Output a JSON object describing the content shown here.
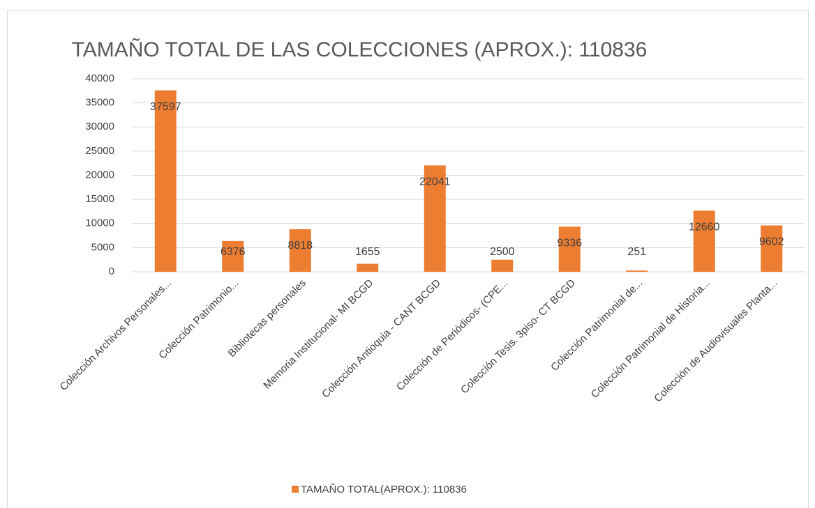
{
  "chart_data": {
    "type": "bar",
    "title": "TAMAÑO TOTAL DE LAS COLECCIONES (APROX.): 110836",
    "categories": [
      "Colección Archivos Personales...",
      "Colección Patrimonio...",
      "Bibliotecas personales",
      "Memoria Institucional- MI BCGD",
      "Colección Antioquia - CANT BCGD",
      "Colección de Periódicos- (CPE...",
      "Colección Tesis. 3piso- CT BCGD",
      "Colección Patrimonial de...",
      "Colección Patrimonial de Historia...",
      "Colección de Audiovisuales Planta..."
    ],
    "series": [
      {
        "name": "TAMAÑO TOTAL(APROX.): 110836",
        "color": "#ed7d31",
        "values": [
          37597,
          6376,
          8818,
          1655,
          22041,
          2500,
          9336,
          251,
          12660,
          9602
        ]
      }
    ],
    "ylim": [
      0,
      40000
    ],
    "yticks": [
      0,
      5000,
      10000,
      15000,
      20000,
      25000,
      30000,
      35000,
      40000
    ],
    "grid": true,
    "legend": "bottom"
  }
}
